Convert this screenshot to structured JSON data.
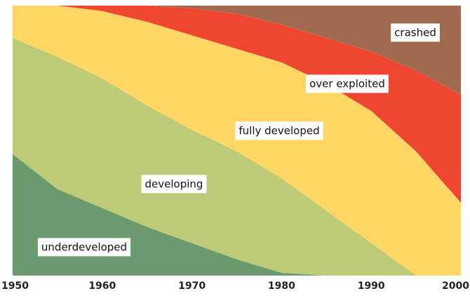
{
  "chart_data": {
    "type": "stacked_area",
    "x": [
      1950,
      1955,
      1960,
      1965,
      1970,
      1975,
      1980,
      1985,
      1990,
      1995,
      2000
    ],
    "xlim": [
      1950,
      2000
    ],
    "xticks": [
      1950,
      1960,
      1970,
      1980,
      1990,
      2000
    ],
    "ylim": [
      0,
      100
    ],
    "series": [
      {
        "name": "underdeveloped",
        "color": "#6a9a6e",
        "values": [
          45,
          32,
          25,
          18,
          12,
          6,
          1,
          0,
          0,
          0,
          0
        ]
      },
      {
        "name": "developing",
        "color": "#bdca78",
        "values": [
          43,
          49,
          48,
          45,
          42,
          40,
          35,
          24,
          12,
          0,
          0
        ]
      },
      {
        "name": "fully developed",
        "color": "#fdd663",
        "values": [
          12,
          19,
          25,
          31,
          35,
          38,
          43,
          47,
          49,
          46,
          27
        ]
      },
      {
        "name": "over exploited",
        "color": "#ee4631",
        "values": [
          0,
          0,
          2,
          6,
          10,
          13,
          14,
          17,
          22,
          30,
          40
        ]
      },
      {
        "name": "crashed",
        "color": "#a06a4e",
        "values": [
          0,
          0,
          0,
          0,
          1,
          3,
          7,
          12,
          17,
          24,
          33
        ]
      }
    ]
  }
}
